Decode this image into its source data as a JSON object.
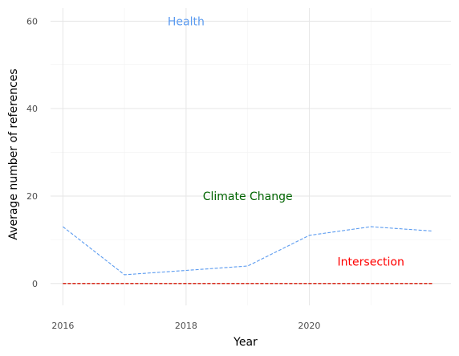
{
  "chart_data": {
    "type": "line",
    "xlabel": "Year",
    "ylabel": "Average number of references",
    "xlim": [
      2015.8,
      2022.3
    ],
    "ylim": [
      -5,
      63
    ],
    "x_ticks": [
      2016,
      2018,
      2020
    ],
    "y_ticks": [
      0,
      20,
      40,
      60
    ],
    "grid": true,
    "x": [
      2016,
      2017,
      2018,
      2019,
      2020,
      2021,
      2022
    ],
    "series": [
      {
        "key": "health",
        "color": "#5b9bf0",
        "values": [
          13,
          2,
          3,
          4,
          11,
          13,
          12
        ]
      },
      {
        "key": "climate",
        "color": "#006400",
        "values": [
          0,
          0,
          0,
          0,
          0,
          0,
          0
        ]
      },
      {
        "key": "intersection",
        "color": "#ff0000",
        "values": [
          0,
          0,
          0,
          0,
          0,
          0,
          0
        ]
      }
    ],
    "annotations": [
      {
        "text": "Health",
        "x": 2018.0,
        "y": 60,
        "color": "#5b9bf0"
      },
      {
        "text": "Climate Change",
        "x": 2019.0,
        "y": 20,
        "color": "#006400"
      },
      {
        "text": "Intersection",
        "x": 2021.0,
        "y": 5,
        "color": "#ff0000"
      }
    ]
  }
}
